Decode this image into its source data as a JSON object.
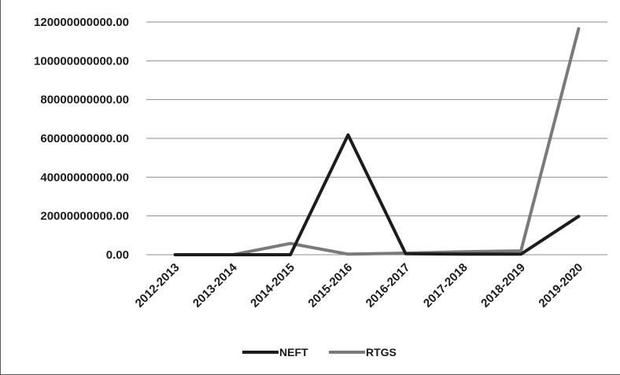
{
  "chart_data": {
    "type": "line",
    "categories": [
      "2012-2013",
      "2013-2014",
      "2014-2015",
      "2015-2016",
      "2016-2017",
      "2017-2018",
      "2018-2019",
      "2019-2020"
    ],
    "series": [
      {
        "name": "NEFT",
        "color": "#1c1c1c",
        "values": [
          0,
          0,
          0,
          61800000000,
          500000000,
          300000000,
          300000000,
          19800000000
        ]
      },
      {
        "name": "RTGS",
        "color": "#7a7a7a",
        "values": [
          0,
          0,
          5800000000,
          300000000,
          800000000,
          1500000000,
          2000000000,
          116500000000
        ]
      }
    ],
    "yticks": [
      "0.00",
      "20000000000.00",
      "40000000000.00",
      "60000000000.00",
      "80000000000.00",
      "100000000000.00",
      "120000000000.00"
    ],
    "ylim": [
      0,
      120000000000
    ],
    "grid": true,
    "legend": "bottom"
  }
}
